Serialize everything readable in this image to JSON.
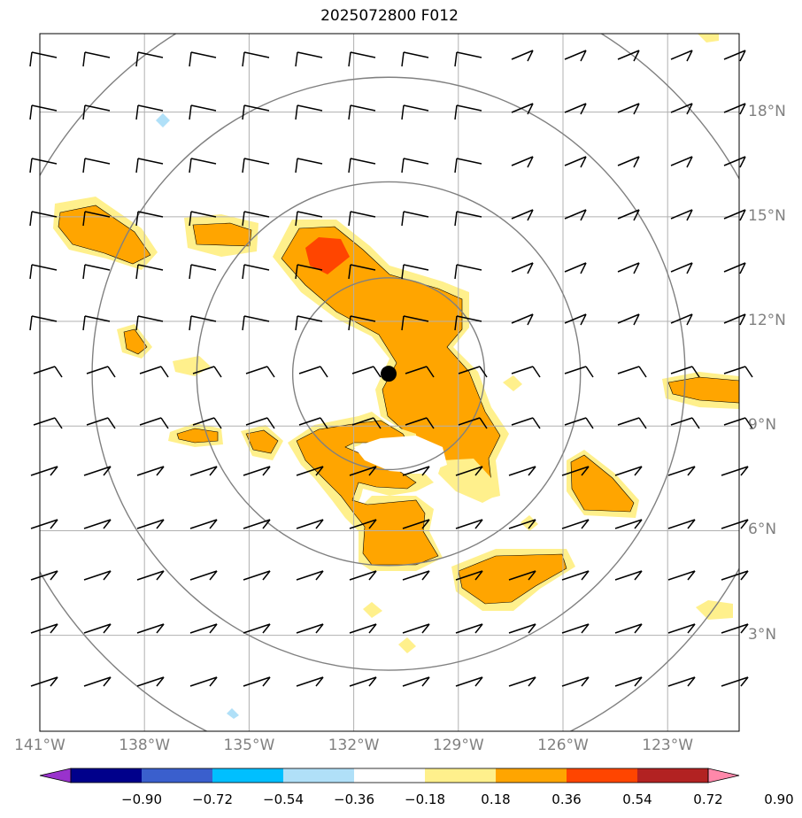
{
  "title": "2025072800 F012",
  "latitude_labels": [
    "18°N",
    "15°N",
    "12°N",
    "9°N",
    "6°N",
    "3°N"
  ],
  "longitude_labels": [
    "141°W",
    "138°W",
    "135°W",
    "132°W",
    "129°W",
    "126°W",
    "123°W"
  ],
  "colorbar": {
    "ticks": [
      "−0.90",
      "−0.72",
      "−0.54",
      "−0.36",
      "−0.18",
      "0.18",
      "0.36",
      "0.54",
      "0.72",
      "0.90"
    ],
    "colors": [
      "#9932cc",
      "#00008b",
      "#3a5fcd",
      "#00bfff",
      "#b0e0f8",
      "#ffffff",
      "#fff08c",
      "#ffa500",
      "#ff4500",
      "#b22222",
      "#ff88aa"
    ]
  },
  "field_colors": {
    "light": "#fff08c",
    "medium": "#ffa500",
    "strong": "#ff4500",
    "negative": "#b0e0f8"
  },
  "storm_center": {
    "lon": -131.0,
    "lat": 10.5
  },
  "range_rings_deg": [
    2.75,
    5.5,
    8.5,
    11.5
  ]
}
